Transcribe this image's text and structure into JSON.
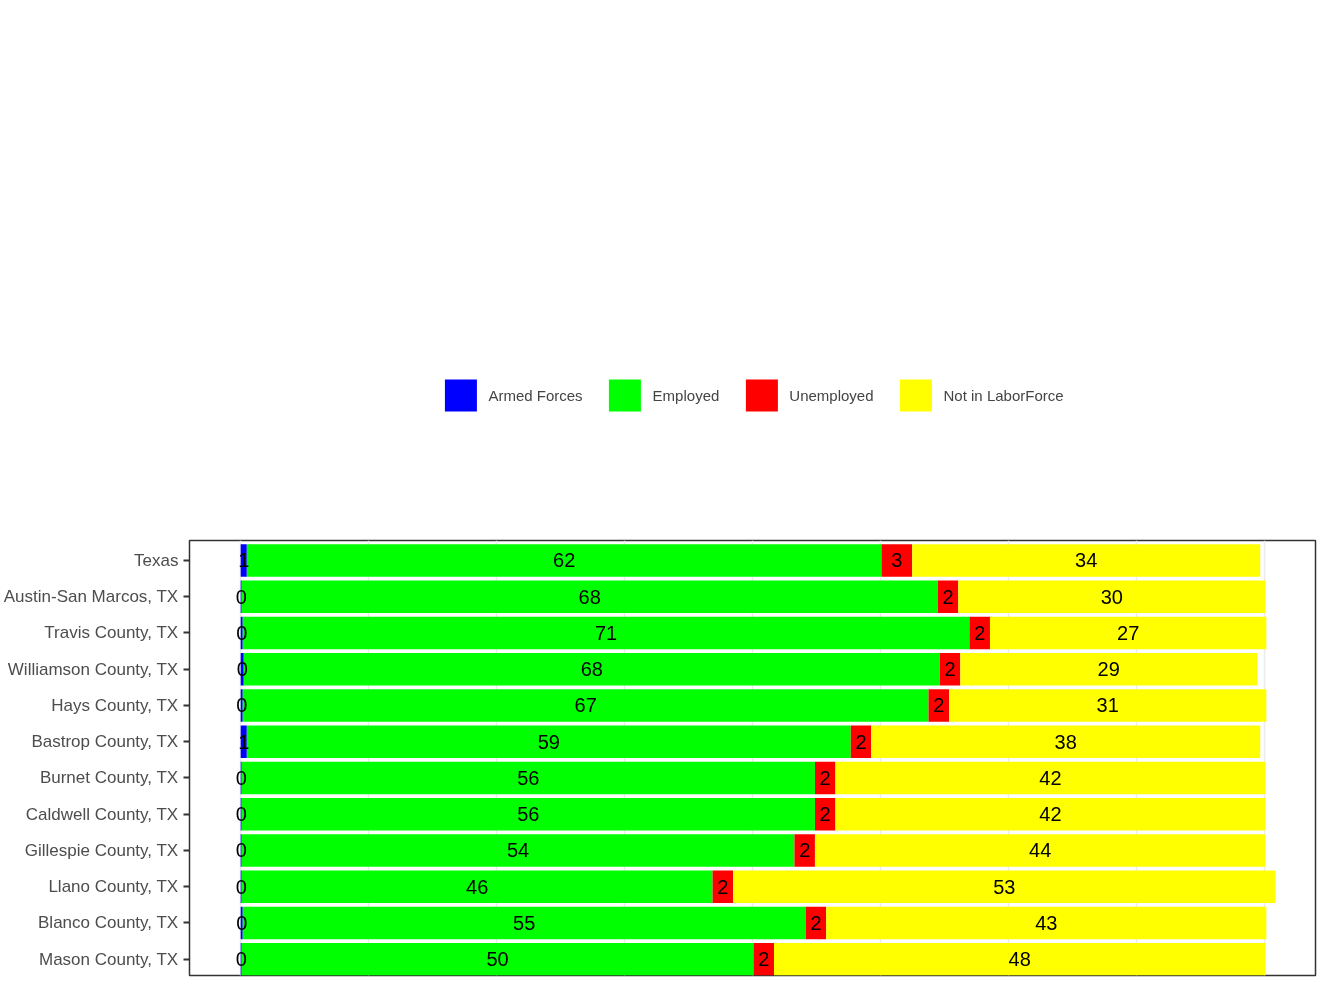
{
  "chart_data": {
    "type": "bar",
    "orientation": "horizontal",
    "stacked": true,
    "data_labels": true,
    "legend": "top",
    "grid": "x",
    "tick_labels": "y",
    "categories": [
      "Texas",
      "Austin-San Marcos, TX",
      "Travis County, TX",
      "Williamson County, TX",
      "Hays County, TX",
      "Bastrop County, TX",
      "Burnet County, TX",
      "Caldwell County, TX",
      "Gillespie County, TX",
      "Llano County, TX",
      "Blanco County, TX",
      "Mason County, TX"
    ],
    "xlim": [
      -5,
      105
    ],
    "xticks": [
      {
        "value": 0,
        "label": null
      },
      {
        "value": 12.5,
        "label": null
      },
      {
        "value": 25,
        "label": null
      },
      {
        "value": 37.5,
        "label": null
      },
      {
        "value": 50,
        "label": null
      },
      {
        "value": 62.5,
        "label": null
      },
      {
        "value": 75,
        "label": null
      },
      {
        "value": 87.5,
        "label": null
      },
      {
        "value": 100,
        "label": null
      }
    ],
    "series": [
      {
        "name": "Armed Forces",
        "color": "#0000ff",
        "values": [
          0.6,
          0.1,
          0.2,
          0.3,
          0.2,
          0.6,
          0.1,
          0.1,
          0.1,
          0.1,
          0.2,
          0.1
        ],
        "value_labels": [
          "1",
          "0",
          "0",
          "0",
          "0",
          "1",
          "0",
          "0",
          "0",
          "0",
          "0",
          "0"
        ]
      },
      {
        "name": "Employed",
        "color": "#00ff00",
        "values": [
          62,
          68,
          71,
          68,
          67,
          59,
          56,
          56,
          54,
          46,
          55,
          50
        ]
      },
      {
        "name": "Unemployed",
        "color": "#ff0000",
        "values": [
          3,
          2,
          2,
          2,
          2,
          2,
          2,
          2,
          2,
          2,
          2,
          2
        ]
      },
      {
        "name": "Not in LaborForce",
        "color": "#ffff00",
        "values": [
          34,
          30,
          27,
          29,
          31,
          38,
          42,
          42,
          44,
          53,
          43,
          48
        ]
      }
    ]
  }
}
